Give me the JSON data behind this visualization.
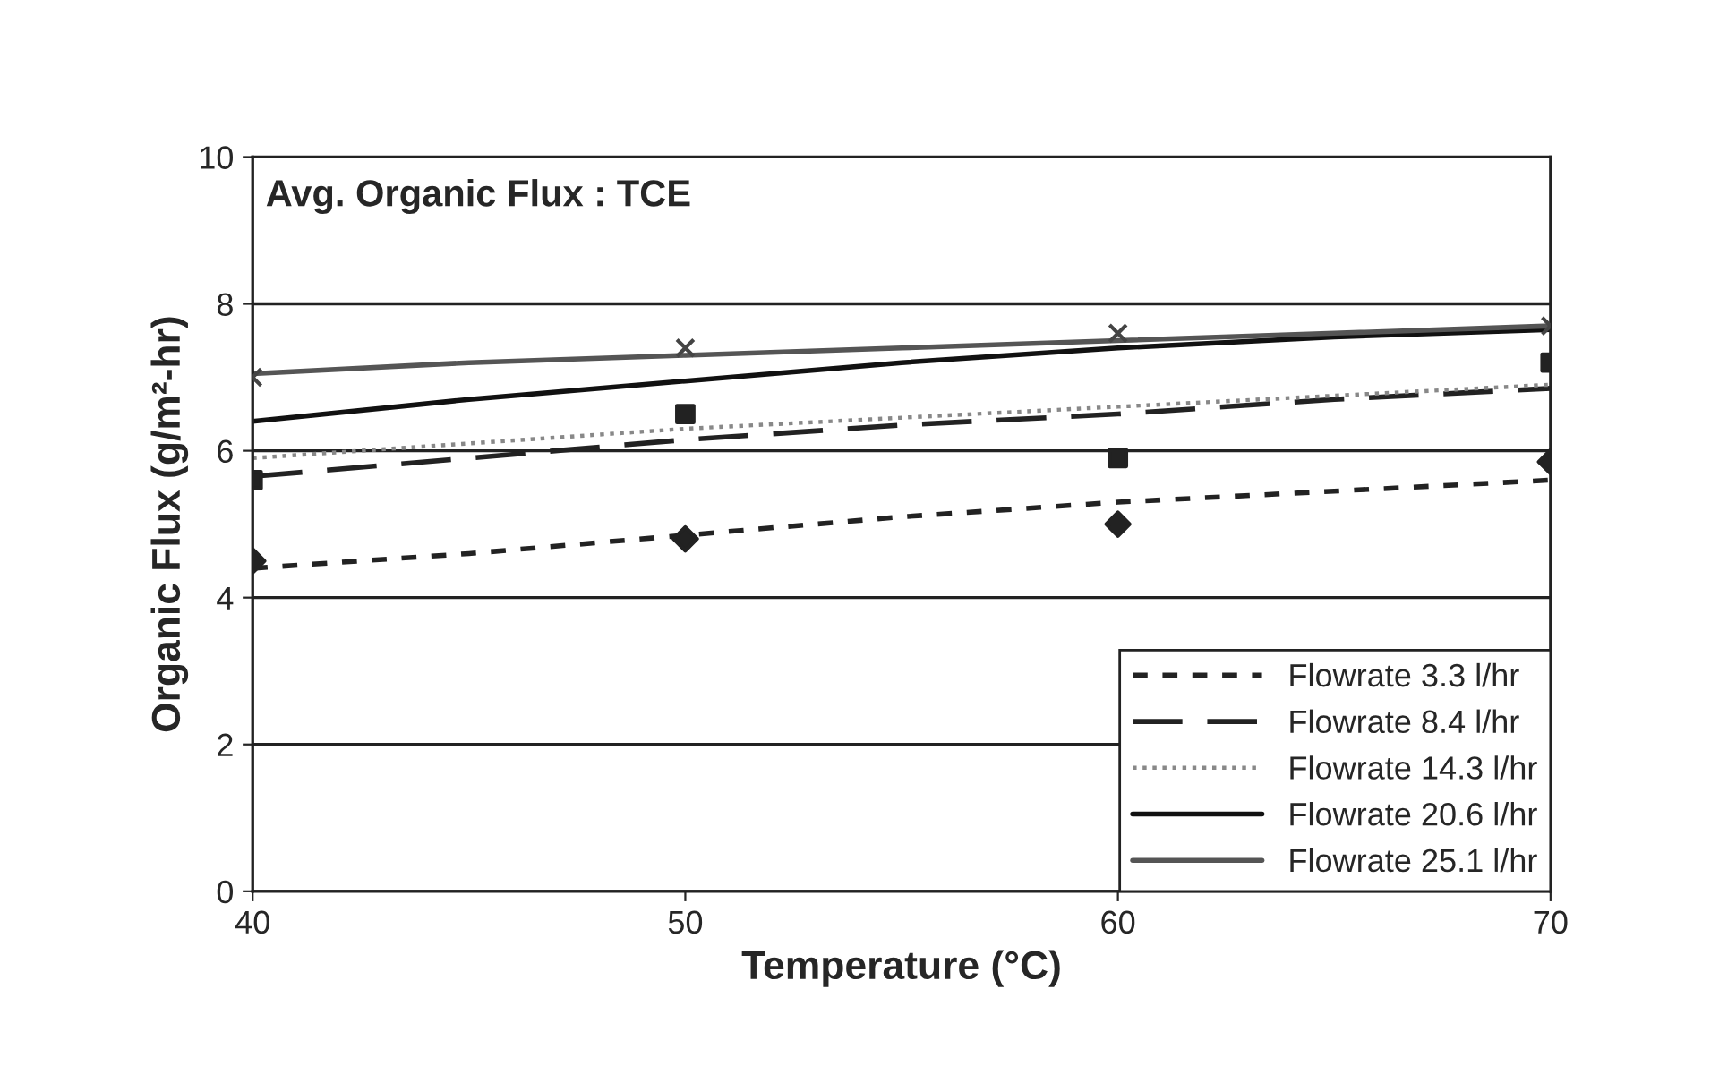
{
  "chart_data": {
    "type": "line",
    "title": "Avg. Organic Flux : TCE",
    "xlabel": "Temperature (°C)",
    "ylabel": "Organic Flux (g/m²-hr)",
    "xlim": [
      40,
      70
    ],
    "xticks": [
      40,
      50,
      60,
      70
    ],
    "ylim": [
      0,
      10
    ],
    "yticks": [
      0,
      2,
      4,
      6,
      8,
      10
    ],
    "grid": "y",
    "legend": "bottom right",
    "series": [
      {
        "name": "Flowrate 3.3 l/hr",
        "color": "#222222",
        "line_style": "dashed",
        "x": [
          40,
          45,
          50,
          55,
          60,
          65,
          70
        ],
        "values": [
          4.4,
          4.6,
          4.85,
          5.1,
          5.3,
          5.45,
          5.6
        ]
      },
      {
        "name": "Flowrate 8.4 l/hr",
        "color": "#222222",
        "line_style": "longdash",
        "x": [
          40,
          45,
          50,
          55,
          60,
          65,
          70
        ],
        "values": [
          5.65,
          5.9,
          6.15,
          6.35,
          6.5,
          6.7,
          6.85
        ]
      },
      {
        "name": "Flowrate 14.3 l/hr",
        "color": "#888888",
        "line_style": "dotted",
        "x": [
          40,
          45,
          50,
          55,
          60,
          65,
          70
        ],
        "values": [
          5.9,
          6.1,
          6.3,
          6.45,
          6.6,
          6.75,
          6.9
        ]
      },
      {
        "name": "Flowrate 20.6 l/hr",
        "color": "#111111",
        "line_style": "solid",
        "x": [
          40,
          45,
          50,
          55,
          60,
          65,
          70
        ],
        "values": [
          6.4,
          6.7,
          6.95,
          7.2,
          7.4,
          7.55,
          7.65
        ]
      },
      {
        "name": "Flowrate 25.1 l/hr",
        "color": "#555555",
        "line_style": "solid",
        "x": [
          40,
          45,
          50,
          55,
          60,
          65,
          70
        ],
        "values": [
          7.05,
          7.2,
          7.3,
          7.4,
          7.5,
          7.6,
          7.7
        ]
      },
      {
        "type": "scatter",
        "color": "#222222",
        "marker": "diamond",
        "x": [
          40,
          50,
          60,
          70
        ],
        "values": [
          4.5,
          4.8,
          5.0,
          5.85
        ]
      },
      {
        "type": "scatter",
        "color": "#222222",
        "marker": "square",
        "x": [
          40,
          50,
          60,
          70
        ],
        "values": [
          5.6,
          6.5,
          5.9,
          7.2
        ]
      },
      {
        "type": "scatter",
        "color": "#444444",
        "marker": "cross",
        "x": [
          40,
          50,
          60,
          70
        ],
        "values": [
          7.0,
          7.4,
          7.6,
          7.7
        ]
      }
    ]
  }
}
